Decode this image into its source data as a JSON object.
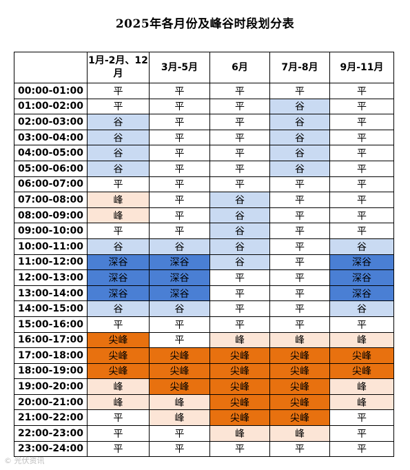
{
  "title": "2025年各月份及峰谷时段划分表",
  "header": {
    "corner": "",
    "columns": [
      "1月-2月、12月",
      "3月-5月",
      "6月",
      "7月-8月",
      "9月-11月"
    ]
  },
  "colors": {
    "平": "#ffffff",
    "谷": "#c9daf2",
    "深谷": "#4a7fd4",
    "峰": "#fce5d6",
    "尖峰": "#e8710f"
  },
  "rows": [
    {
      "time": "00:00-01:00",
      "cells": [
        "平",
        "平",
        "平",
        "平",
        "平"
      ]
    },
    {
      "time": "01:00-02:00",
      "cells": [
        "平",
        "平",
        "平",
        "谷",
        "平"
      ]
    },
    {
      "time": "02:00-03:00",
      "cells": [
        "谷",
        "平",
        "平",
        "谷",
        "平"
      ]
    },
    {
      "time": "03:00-04:00",
      "cells": [
        "谷",
        "平",
        "平",
        "谷",
        "平"
      ]
    },
    {
      "time": "04:00-05:00",
      "cells": [
        "谷",
        "平",
        "平",
        "谷",
        "平"
      ]
    },
    {
      "time": "05:00-06:00",
      "cells": [
        "谷",
        "平",
        "平",
        "谷",
        "平"
      ]
    },
    {
      "time": "06:00-07:00",
      "cells": [
        "平",
        "平",
        "平",
        "平",
        "平"
      ]
    },
    {
      "time": "07:00-08:00",
      "cells": [
        "峰",
        "平",
        "谷",
        "平",
        "平"
      ]
    },
    {
      "time": "08:00-09:00",
      "cells": [
        "峰",
        "平",
        "谷",
        "平",
        "平"
      ]
    },
    {
      "time": "09:00-10:00",
      "cells": [
        "平",
        "平",
        "谷",
        "平",
        "平"
      ]
    },
    {
      "time": "10:00-11:00",
      "cells": [
        "谷",
        "谷",
        "谷",
        "平",
        "谷"
      ]
    },
    {
      "time": "11:00-12:00",
      "cells": [
        "深谷",
        "深谷",
        "谷",
        "平",
        "深谷"
      ]
    },
    {
      "time": "12:00-13:00",
      "cells": [
        "深谷",
        "深谷",
        "平",
        "平",
        "深谷"
      ]
    },
    {
      "time": "13:00-14:00",
      "cells": [
        "深谷",
        "深谷",
        "平",
        "平",
        "深谷"
      ]
    },
    {
      "time": "14:00-15:00",
      "cells": [
        "谷",
        "谷",
        "平",
        "平",
        "谷"
      ]
    },
    {
      "time": "15:00-16:00",
      "cells": [
        "平",
        "平",
        "平",
        "平",
        "平"
      ]
    },
    {
      "time": "16:00-17:00",
      "cells": [
        "尖峰",
        "平",
        "峰",
        "峰",
        "峰"
      ]
    },
    {
      "time": "17:00-18:00",
      "cells": [
        "尖峰",
        "尖峰",
        "尖峰",
        "尖峰",
        "尖峰"
      ]
    },
    {
      "time": "18:00-19:00",
      "cells": [
        "尖峰",
        "尖峰",
        "尖峰",
        "尖峰",
        "尖峰"
      ]
    },
    {
      "time": "19:00-20:00",
      "cells": [
        "峰",
        "尖峰",
        "尖峰",
        "尖峰",
        "峰"
      ]
    },
    {
      "time": "20:00-21:00",
      "cells": [
        "峰",
        "峰",
        "尖峰",
        "尖峰",
        "峰"
      ]
    },
    {
      "time": "21:00-22:00",
      "cells": [
        "平",
        "峰",
        "尖峰",
        "尖峰",
        "平"
      ]
    },
    {
      "time": "22:00-23:00",
      "cells": [
        "平",
        "平",
        "峰",
        "峰",
        "平"
      ]
    },
    {
      "time": "23:00-24:00",
      "cells": [
        "平",
        "平",
        "平",
        "平",
        "平"
      ]
    }
  ],
  "watermark": "© 光伏资讯"
}
